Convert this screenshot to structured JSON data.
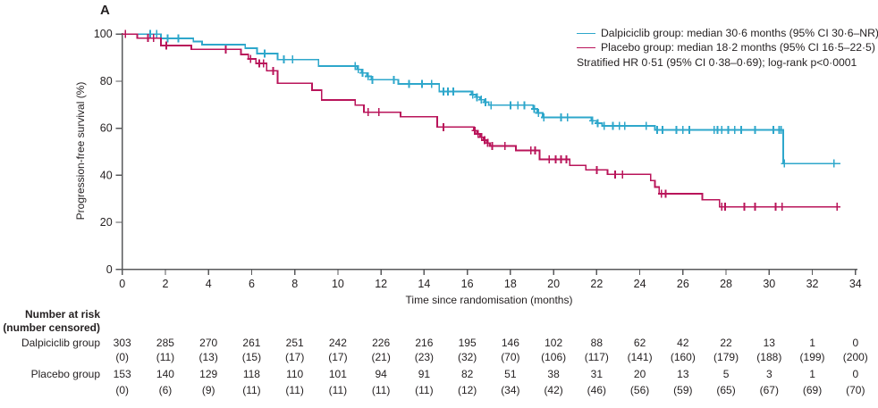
{
  "panel_label": "A",
  "colors": {
    "dalpiciclib": "#2ea7cb",
    "placebo": "#b9145a",
    "axis": "#58595b",
    "text": "#231f20"
  },
  "legend": {
    "dalpiciclib": "Dalpiciclib group: median 30·6 months (95% CI 30·6–NR)",
    "placebo": "Placebo group: median 18·2 months (95% CI 16·5–22·5)",
    "stratified": "Stratified HR 0·51 (95% CI 0·38–0·69); log-rank p<0·0001"
  },
  "chart_data": {
    "type": "line",
    "subtype": "kaplan-meier-step",
    "title": "",
    "xlabel": "Time since randomisation (months)",
    "ylabel": "Progression-free survival (%)",
    "xlim": [
      0,
      34
    ],
    "ylim": [
      0,
      100
    ],
    "xticks": [
      0,
      2,
      4,
      6,
      8,
      10,
      12,
      14,
      16,
      18,
      20,
      22,
      24,
      26,
      28,
      30,
      32,
      34
    ],
    "yticks": [
      0,
      20,
      40,
      60,
      80,
      100
    ],
    "grid": false,
    "legend_position": "top-right",
    "series": [
      {
        "name": "Dalpiciclib group",
        "median_months": "30·6",
        "ci": "30·6–NR",
        "color_key": "dalpiciclib",
        "steps": [
          [
            0,
            100
          ],
          [
            1.8,
            98.2
          ],
          [
            3.3,
            96.8
          ],
          [
            3.7,
            95.5
          ],
          [
            5.7,
            94
          ],
          [
            6.25,
            91.7
          ],
          [
            7.2,
            89.2
          ],
          [
            9.1,
            86.4
          ],
          [
            10.9,
            85
          ],
          [
            11.1,
            83.5
          ],
          [
            11.35,
            82
          ],
          [
            11.55,
            80.6
          ],
          [
            12.8,
            78.8
          ],
          [
            14.7,
            75.6
          ],
          [
            16.2,
            74.3
          ],
          [
            16.4,
            73.2
          ],
          [
            16.6,
            72.1
          ],
          [
            16.8,
            71
          ],
          [
            17.0,
            69.8
          ],
          [
            19.05,
            68.2
          ],
          [
            19.25,
            66.5
          ],
          [
            19.5,
            64.6
          ],
          [
            21.75,
            63.2
          ],
          [
            22.0,
            62.1
          ],
          [
            22.25,
            61.0
          ],
          [
            24.7,
            59.3
          ],
          [
            30.65,
            45
          ],
          [
            33.3,
            45
          ]
        ],
        "censors": [
          [
            1.3,
            100
          ],
          [
            1.6,
            100
          ],
          [
            2.1,
            98.2
          ],
          [
            2.6,
            98.2
          ],
          [
            6.6,
            91.7
          ],
          [
            7.5,
            89.2
          ],
          [
            7.9,
            89.2
          ],
          [
            10.8,
            86.4
          ],
          [
            10.95,
            85
          ],
          [
            11.15,
            83.5
          ],
          [
            11.4,
            82
          ],
          [
            11.6,
            80.6
          ],
          [
            12.6,
            80.6
          ],
          [
            13.3,
            78.8
          ],
          [
            13.9,
            78.8
          ],
          [
            14.35,
            78.8
          ],
          [
            14.9,
            75.6
          ],
          [
            15.1,
            75.6
          ],
          [
            15.35,
            75.6
          ],
          [
            16.25,
            74.3
          ],
          [
            16.45,
            73.2
          ],
          [
            16.65,
            72.1
          ],
          [
            16.85,
            71
          ],
          [
            17.1,
            69.8
          ],
          [
            18.0,
            69.8
          ],
          [
            18.35,
            69.8
          ],
          [
            18.65,
            69.8
          ],
          [
            19.1,
            68.2
          ],
          [
            19.3,
            66.5
          ],
          [
            19.55,
            64.6
          ],
          [
            20.35,
            64.6
          ],
          [
            20.65,
            64.6
          ],
          [
            21.8,
            63.2
          ],
          [
            22.05,
            62.1
          ],
          [
            22.35,
            61.0
          ],
          [
            22.75,
            61.0
          ],
          [
            23.05,
            61.0
          ],
          [
            23.3,
            61.0
          ],
          [
            24.3,
            61.0
          ],
          [
            24.8,
            59.3
          ],
          [
            25.05,
            59.3
          ],
          [
            25.7,
            59.3
          ],
          [
            26.0,
            59.3
          ],
          [
            26.3,
            59.3
          ],
          [
            27.45,
            59.3
          ],
          [
            27.6,
            59.3
          ],
          [
            27.8,
            59.3
          ],
          [
            28.1,
            59.3
          ],
          [
            28.4,
            59.3
          ],
          [
            28.7,
            59.3
          ],
          [
            29.35,
            59.3
          ],
          [
            30.2,
            59.3
          ],
          [
            30.45,
            59.3
          ],
          [
            30.55,
            59.3
          ],
          [
            30.7,
            45
          ],
          [
            33.0,
            45
          ]
        ]
      },
      {
        "name": "Placebo group",
        "median_months": "18·2",
        "ci": "16·5–22·5",
        "color_key": "placebo",
        "steps": [
          [
            0,
            100
          ],
          [
            0.7,
            98.3
          ],
          [
            1.8,
            95.1
          ],
          [
            3.2,
            93.5
          ],
          [
            5.5,
            91.3
          ],
          [
            5.85,
            89.5
          ],
          [
            6.2,
            87.5
          ],
          [
            6.7,
            84.4
          ],
          [
            7.2,
            79.1
          ],
          [
            8.8,
            76.2
          ],
          [
            9.25,
            72
          ],
          [
            10.8,
            69.8
          ],
          [
            11.2,
            66.8
          ],
          [
            12.9,
            64.9
          ],
          [
            14.6,
            60.5
          ],
          [
            16.3,
            59
          ],
          [
            16.45,
            57.6
          ],
          [
            16.6,
            56.2
          ],
          [
            16.75,
            54.9
          ],
          [
            16.9,
            53.7
          ],
          [
            17.05,
            52.5
          ],
          [
            18.25,
            50.6
          ],
          [
            19.35,
            46.8
          ],
          [
            20.75,
            44.2
          ],
          [
            21.5,
            42.3
          ],
          [
            22.5,
            40.4
          ],
          [
            24.5,
            37.8
          ],
          [
            24.7,
            35
          ],
          [
            24.9,
            32.2
          ],
          [
            26.9,
            29.6
          ],
          [
            27.7,
            26.6
          ],
          [
            33.15,
            26.6
          ]
        ],
        "censors": [
          [
            0.15,
            100
          ],
          [
            1.2,
            98.3
          ],
          [
            1.45,
            98.3
          ],
          [
            2.05,
            95.1
          ],
          [
            4.8,
            93.5
          ],
          [
            5.95,
            89.5
          ],
          [
            6.35,
            87.5
          ],
          [
            6.55,
            87.5
          ],
          [
            7.0,
            84.4
          ],
          [
            11.4,
            66.8
          ],
          [
            11.9,
            66.8
          ],
          [
            14.9,
            60.5
          ],
          [
            16.35,
            59
          ],
          [
            16.5,
            57.6
          ],
          [
            16.67,
            56.2
          ],
          [
            16.8,
            54.9
          ],
          [
            16.95,
            53.7
          ],
          [
            17.15,
            52.5
          ],
          [
            17.75,
            52.5
          ],
          [
            18.95,
            50.6
          ],
          [
            19.15,
            50.6
          ],
          [
            19.8,
            46.8
          ],
          [
            20.1,
            46.8
          ],
          [
            20.35,
            46.8
          ],
          [
            20.6,
            46.8
          ],
          [
            22.0,
            42.3
          ],
          [
            22.85,
            40.4
          ],
          [
            23.2,
            40.4
          ],
          [
            25.0,
            32.2
          ],
          [
            25.2,
            32.2
          ],
          [
            27.8,
            26.6
          ],
          [
            27.95,
            26.6
          ],
          [
            28.85,
            26.6
          ],
          [
            29.35,
            26.6
          ],
          [
            30.3,
            26.6
          ],
          [
            30.6,
            26.6
          ],
          [
            33.15,
            26.6
          ]
        ]
      }
    ]
  },
  "risk_table": {
    "header_line1": "Number at risk",
    "header_line2": "(number censored)",
    "rows": [
      {
        "label": "Dalpiciclib group",
        "at_risk": [
          "303",
          "285",
          "270",
          "261",
          "251",
          "242",
          "226",
          "216",
          "195",
          "146",
          "102",
          "88",
          "62",
          "42",
          "22",
          "13",
          "1",
          "0"
        ],
        "censored": [
          "(0)",
          "(11)",
          "(13)",
          "(15)",
          "(17)",
          "(17)",
          "(21)",
          "(23)",
          "(32)",
          "(70)",
          "(106)",
          "(117)",
          "(141)",
          "(160)",
          "(179)",
          "(188)",
          "(199)",
          "(200)"
        ]
      },
      {
        "label": "Placebo group",
        "at_risk": [
          "153",
          "140",
          "129",
          "118",
          "110",
          "101",
          "94",
          "91",
          "82",
          "51",
          "38",
          "31",
          "20",
          "13",
          "5",
          "3",
          "1",
          "0"
        ],
        "censored": [
          "(0)",
          "(6)",
          "(9)",
          "(11)",
          "(11)",
          "(11)",
          "(11)",
          "(11)",
          "(12)",
          "(34)",
          "(42)",
          "(46)",
          "(56)",
          "(59)",
          "(65)",
          "(67)",
          "(69)",
          "(70)"
        ]
      }
    ]
  }
}
